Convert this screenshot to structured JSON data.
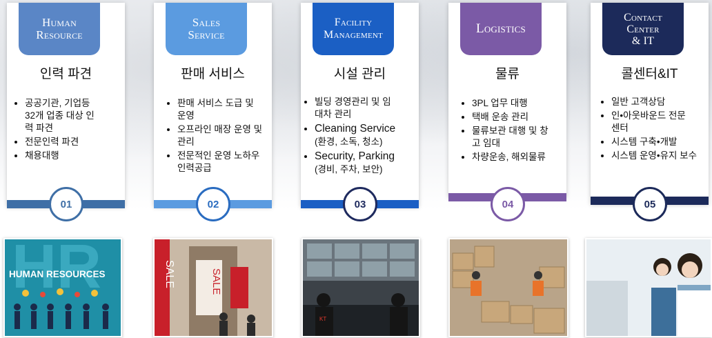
{
  "cards": [
    {
      "tab": "Human\nResource",
      "title": "인력 파견",
      "bullets": [
        {
          "text": "공공기관, 기업등 32개 업종 대상 인력 파견"
        },
        {
          "text": "전문인력 파견"
        },
        {
          "text": "채용대행"
        }
      ],
      "number": "01",
      "color": "#5a86c6",
      "band_color": "#3f6fa6",
      "number_color": "#3f6fa6"
    },
    {
      "tab": "Sales\nService",
      "title": "판매 서비스",
      "bullets": [
        {
          "text": "판매 서비스 도급 및 운영"
        },
        {
          "text": "오프라인 매장 운영 및 관리"
        },
        {
          "text": "전문적인 운영 노하우 인력공급"
        }
      ],
      "number": "02",
      "color": "#5b9be0",
      "band_color": "#5b9be0",
      "number_color": "#2a6cc0"
    },
    {
      "tab": "Facility\nManagement",
      "title": "시설 관리",
      "bullets": [
        {
          "text": "빌딩 경영관리 및 임대차 관리"
        },
        {
          "text": "Cleaning Service",
          "sub": "(환경, 소독, 청소)",
          "en": true
        },
        {
          "text": "Security, Parking",
          "sub": "(경비, 주차, 보안)",
          "en": true
        }
      ],
      "number": "03",
      "color": "#1b5fc4",
      "band_color": "#1b5fc4",
      "number_color": "#1e2a5e"
    },
    {
      "tab": "Logistics",
      "title": "물류",
      "bullets": [
        {
          "text": "3PL 업무 대행"
        },
        {
          "text": "택배 운송 관리"
        },
        {
          "text": "물류보관 대행 및 창고 임대"
        },
        {
          "text": "차량운송, 해외물류"
        }
      ],
      "number": "04",
      "color": "#7b5aa6",
      "band_color": "#7b5aa6",
      "number_color": "#7b5aa6"
    },
    {
      "tab": "Contact\nCenter\n& IT",
      "title": "콜센터&IT",
      "bullets": [
        {
          "text": "일반 고객상담"
        },
        {
          "text": "인•아웃바운드 전문센터"
        },
        {
          "text": "시스템 구축•개발"
        },
        {
          "text": "시스템 운영•유지 보수"
        }
      ],
      "number": "05",
      "color": "#1c2a5a",
      "band_color": "#1c2a5a",
      "number_color": "#1c2a5a"
    }
  ],
  "photos": {
    "hr_text": "HUMAN RESOURCES",
    "hr_big": "HR",
    "sale_text": "SALE",
    "security_text": "KT"
  }
}
